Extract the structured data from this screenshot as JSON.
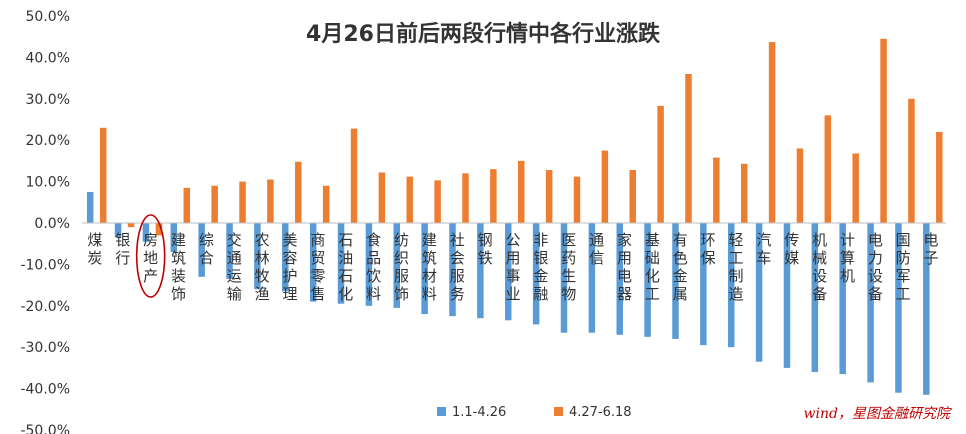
{
  "chart_data": {
    "type": "bar",
    "title": "4月26日前后两段行情中各行业涨跌",
    "xlabel": "",
    "ylabel": "",
    "ylim": [
      -50,
      50
    ],
    "yticks": [
      -50,
      -40,
      -30,
      -20,
      -10,
      0,
      10,
      20,
      30,
      40,
      50
    ],
    "ytick_labels": [
      "-50.0%",
      "-40.0%",
      "-30.0%",
      "-20.0%",
      "-10.0%",
      "0.0%",
      "10.0%",
      "20.0%",
      "30.0%",
      "40.0%",
      "50.0%"
    ],
    "grid": false,
    "legend": "bottom",
    "categories": [
      "煤炭",
      "银行",
      "房地产",
      "建筑装饰",
      "综合",
      "交通运输",
      "农林牧渔",
      "美容护理",
      "商贸零售",
      "石油石化",
      "食品饮料",
      "纺织服饰",
      "建筑材料",
      "社会服务",
      "钢铁",
      "公用事业",
      "非银金融",
      "医药生物",
      "通信",
      "家用电器",
      "基础化工",
      "有色金属",
      "环保",
      "轻工制造",
      "汽车",
      "传媒",
      "机械设备",
      "计算机",
      "电力设备",
      "国防军工",
      "电子"
    ],
    "series": [
      {
        "name": "1.1-4.26",
        "color": "#5b9bd5",
        "values": [
          7.5,
          -3.5,
          -4.5,
          -7.0,
          -13.0,
          -13.5,
          -16.0,
          -16.5,
          -19.0,
          -19.5,
          -20.0,
          -20.5,
          -22.0,
          -22.5,
          -23.0,
          -23.5,
          -24.5,
          -26.5,
          -26.5,
          -27.0,
          -27.5,
          -28.0,
          -29.5,
          -30.0,
          -33.5,
          -35.0,
          -36.0,
          -36.5,
          -38.5,
          -41.0,
          -41.5
        ]
      },
      {
        "name": "4.27-6.18",
        "color": "#ed7d31",
        "values": [
          23.0,
          -1.0,
          -3.0,
          8.5,
          9.0,
          10.0,
          10.5,
          14.8,
          9.0,
          22.8,
          12.2,
          11.2,
          10.3,
          12.0,
          13.0,
          15.0,
          12.8,
          11.2,
          17.5,
          12.8,
          28.3,
          36.0,
          15.8,
          14.3,
          43.7,
          18.0,
          26.0,
          16.8,
          44.5,
          30.0,
          22.0
        ]
      }
    ],
    "annotation": {
      "type": "circle",
      "target": "房地产",
      "color": "#c00000"
    }
  },
  "brand_text": "wind，星图金融研究院"
}
